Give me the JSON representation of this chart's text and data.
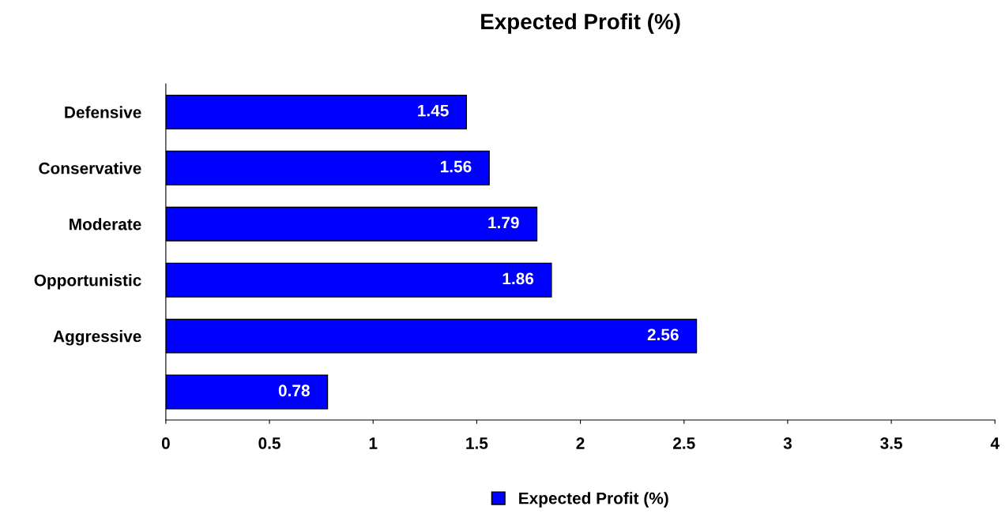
{
  "chart_data": {
    "type": "bar",
    "orientation": "horizontal",
    "title": "Expected Profit (%)",
    "categories": [
      "Defensive",
      "Conservative",
      "Moderate",
      "Opportunistic",
      "Aggressive",
      null
    ],
    "series": [
      {
        "name": "Expected Profit (%)",
        "color": "#0000ff",
        "values": [
          1.45,
          1.56,
          1.79,
          1.86,
          2.56,
          0.78
        ]
      }
    ],
    "xlim": [
      0,
      4
    ],
    "xticks": [
      0,
      0.5,
      1,
      1.5,
      2,
      2.5,
      3,
      3.5,
      4
    ],
    "data_labels": true,
    "legend": "bottom",
    "grid": false
  }
}
